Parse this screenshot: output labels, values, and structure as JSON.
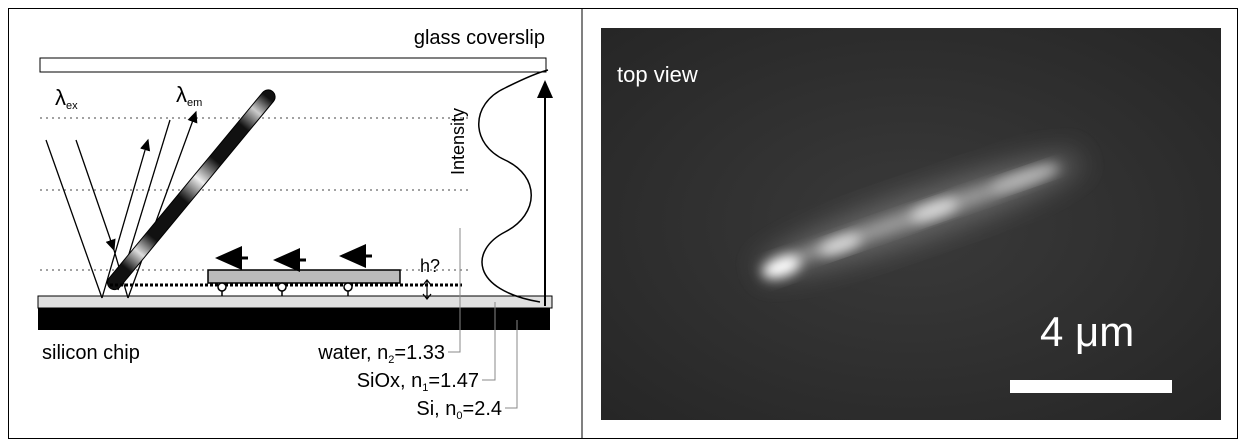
{
  "left_panel": {
    "coverslip_label": "glass coverslip",
    "excitation": {
      "symbol": "λ",
      "sub": "ex"
    },
    "emission": {
      "symbol": "λ",
      "sub": "em"
    },
    "intensity_label": "Intensity",
    "height_label": "h?",
    "chip_label": "silicon chip",
    "layers": [
      {
        "name": "water, n",
        "sub": "2",
        "value": "=1.33"
      },
      {
        "name": "SiOx, n",
        "sub": "1",
        "value": "=1.47"
      },
      {
        "name": "Si, n",
        "sub": "0",
        "value": "=2.4"
      }
    ]
  },
  "right_panel": {
    "view_label": "top view",
    "scale_label": "4 μm"
  }
}
